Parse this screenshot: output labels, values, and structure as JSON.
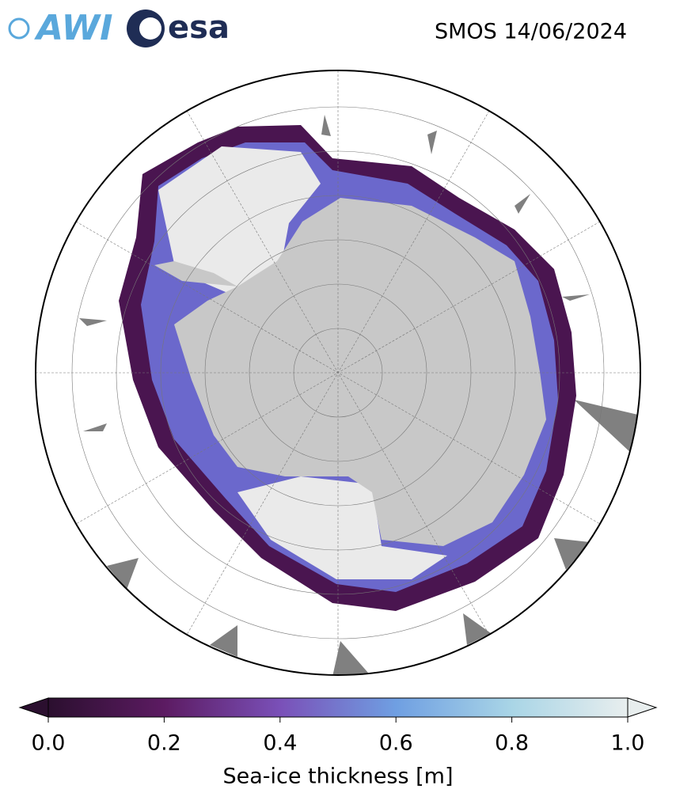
{
  "logos": [
    "AWI",
    "esa"
  ],
  "title": "SMOS 14/06/2024",
  "colorbar": {
    "label": "Sea-ice thickness [m]",
    "lim": [
      0,
      1
    ],
    "ticks": [
      {
        "value": 0,
        "label": "0.0"
      },
      {
        "value": 0.2,
        "label": "0.2"
      },
      {
        "value": 0.4,
        "label": "0.4"
      },
      {
        "value": 0.6,
        "label": "0.6"
      },
      {
        "value": 0.8,
        "label": "0.8"
      },
      {
        "value": 1,
        "label": "1.0"
      }
    ],
    "colors": [
      "#2b0f2f",
      "#5c1b62",
      "#7a50b8",
      "#6f9fe2",
      "#a9d5e6",
      "#e8eeee"
    ]
  }
}
